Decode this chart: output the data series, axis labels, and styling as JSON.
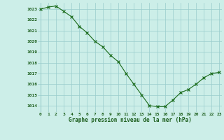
{
  "x": [
    0,
    1,
    2,
    3,
    4,
    5,
    6,
    7,
    8,
    9,
    10,
    11,
    12,
    13,
    14,
    15,
    16,
    17,
    18,
    19,
    20,
    21,
    22,
    23
  ],
  "y": [
    1023.0,
    1023.2,
    1023.3,
    1022.8,
    1022.3,
    1021.4,
    1020.8,
    1020.0,
    1019.5,
    1018.7,
    1018.1,
    1017.0,
    1016.0,
    1015.0,
    1014.0,
    1013.9,
    1013.9,
    1014.5,
    1015.2,
    1015.5,
    1016.0,
    1016.6,
    1017.0,
    1017.1
  ],
  "line_color": "#1a6b1a",
  "marker": "x",
  "bg_color": "#cceee8",
  "grid_color": "#99cccc",
  "text_color": "#1a5c1a",
  "xlabel": "Graphe pression niveau de la mer (hPa)",
  "ylim_min": 1013.4,
  "ylim_max": 1023.6,
  "yticks": [
    1014,
    1015,
    1016,
    1017,
    1018,
    1019,
    1020,
    1021,
    1022,
    1023
  ],
  "xticks": [
    0,
    1,
    2,
    3,
    4,
    5,
    6,
    7,
    8,
    9,
    10,
    11,
    12,
    13,
    14,
    15,
    16,
    17,
    18,
    19,
    20,
    21,
    22,
    23
  ],
  "xtick_labels": [
    "0",
    "1",
    "2",
    "3",
    "4",
    "5",
    "6",
    "7",
    "8",
    "9",
    "10",
    "11",
    "12",
    "13",
    "14",
    "15",
    "16",
    "17",
    "18",
    "19",
    "20",
    "21",
    "22",
    "23"
  ]
}
